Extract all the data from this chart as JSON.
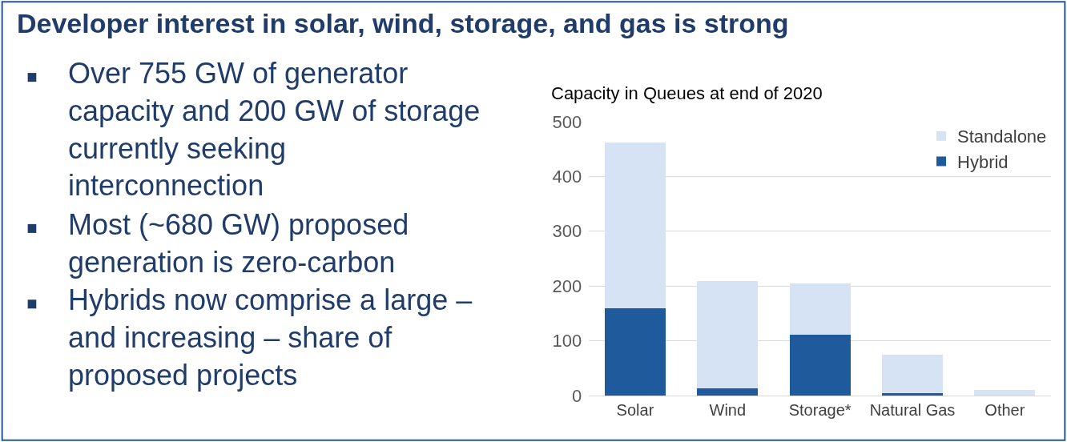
{
  "chart_data": {
    "type": "bar",
    "title": "Developer interest in solar, wind, storage, and gas is strong",
    "subtitle": "Capacity in Queues at end of 2020",
    "annotations": [
      "Over 755 GW of generator capacity and 200 GW of storage currently seeking interconnection",
      "Most (~680 GW) proposed generation is zero-carbon",
      "Hybrids now comprise a large – and increasing – share of proposed projects"
    ],
    "categories": [
      "Solar",
      "Wind",
      "Storage*",
      "Natural Gas",
      "Other"
    ],
    "stacked": true,
    "series": [
      {
        "name": "Hybrid",
        "color": "#1f5a9c",
        "values": [
          159,
          13,
          111,
          4,
          0
        ]
      },
      {
        "name": "Standalone",
        "color": "#d5e3f5",
        "values": [
          303,
          196,
          93,
          70,
          11
        ]
      }
    ],
    "ylim": [
      0,
      500
    ],
    "yticks": [
      0,
      100,
      200,
      300,
      400,
      500
    ],
    "grid": "y",
    "legend": "top right"
  }
}
